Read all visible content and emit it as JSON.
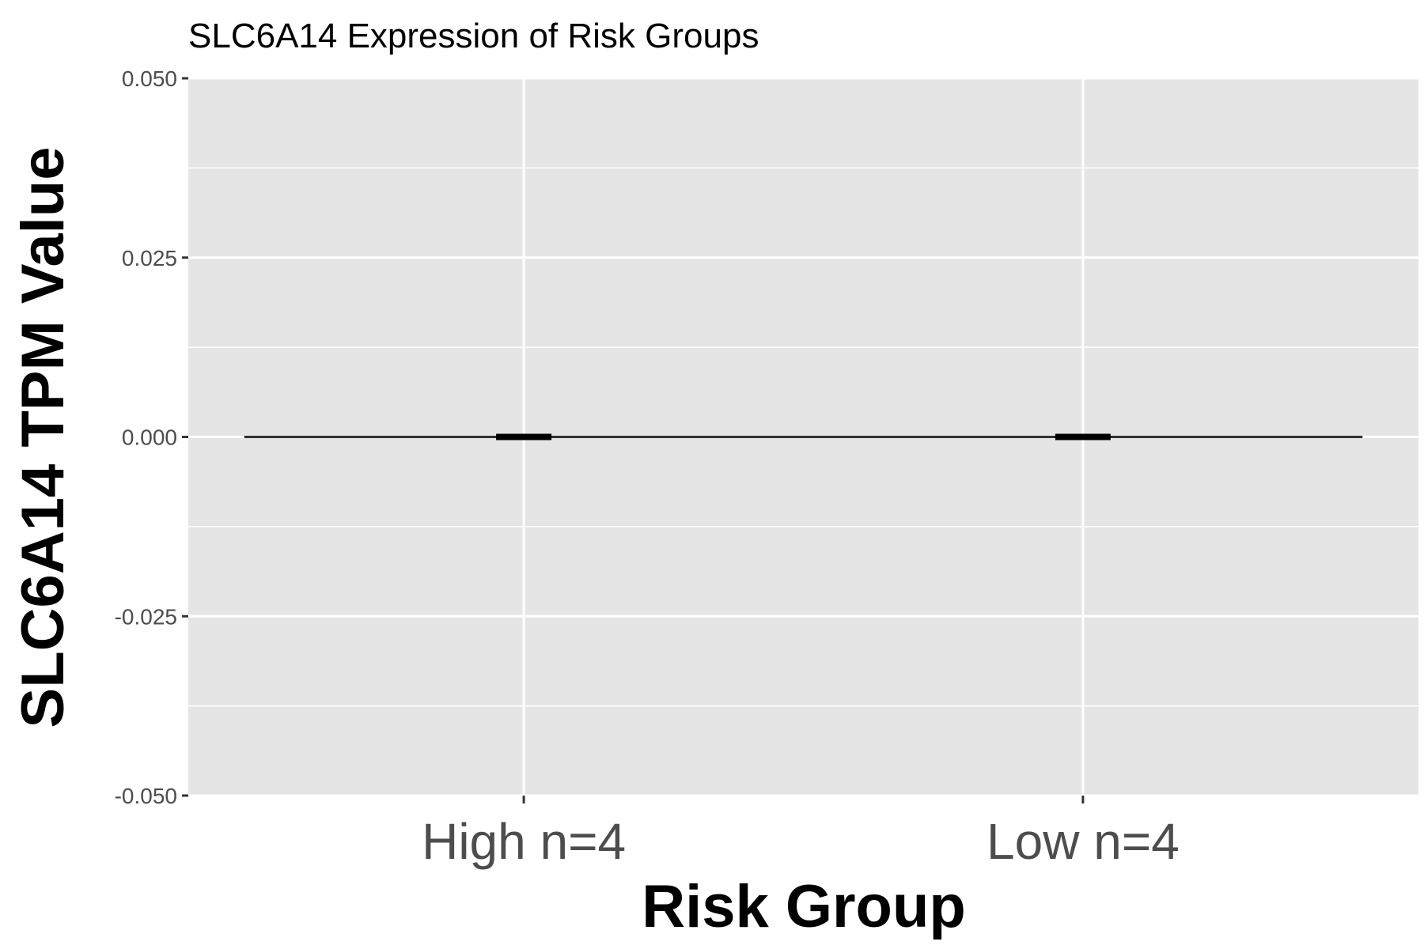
{
  "chart_data": {
    "type": "violin",
    "title": "SLC6A14 Expression of Risk Groups",
    "xlabel": "Risk Group",
    "ylabel": "SLC6A14 TPM Value",
    "categories": [
      "High n=4",
      "Low n=4"
    ],
    "values": [
      0,
      0
    ],
    "y_ticks": [
      "0.050",
      "0.025",
      "0.000",
      "-0.025",
      "-0.050"
    ],
    "ylim": [
      -0.05,
      0.05
    ],
    "grid": true,
    "panel_color": "#e5e5e5"
  }
}
